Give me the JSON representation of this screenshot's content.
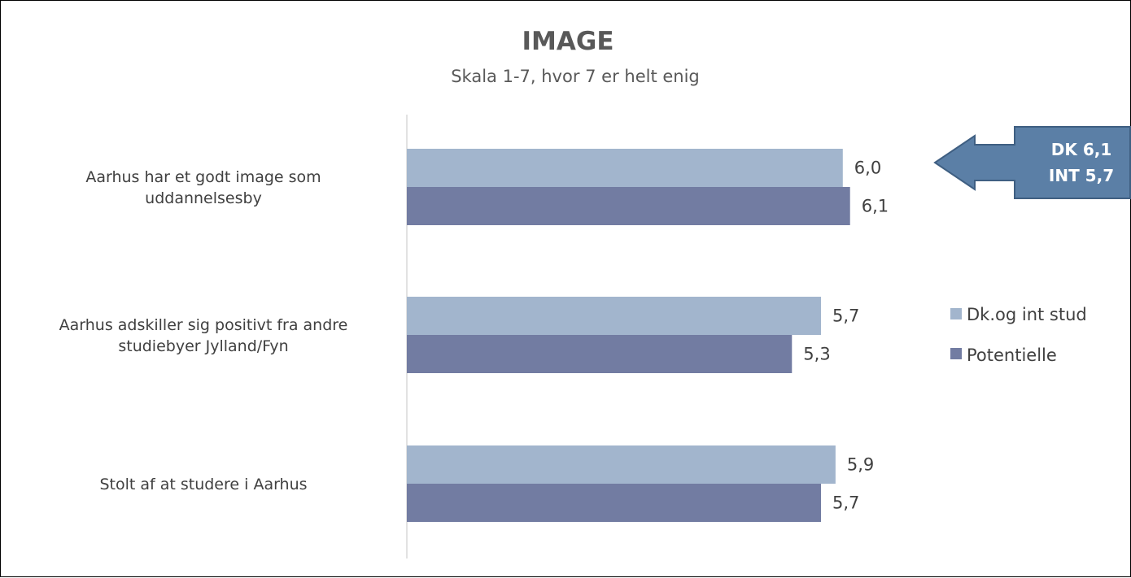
{
  "chart_data": {
    "type": "bar",
    "orientation": "horizontal",
    "title": "IMAGE",
    "subtitle": "Skala 1-7, hvor 7 er helt enig",
    "categories": [
      [
        "Aarhus har et godt image som",
        "uddannelsesby"
      ],
      [
        "Aarhus adskiller sig positivt fra andre",
        "studiebyer Jylland/Fyn"
      ],
      [
        "Stolt af at studere i Aarhus"
      ]
    ],
    "series": [
      {
        "name": "Dk.og int stud",
        "color": "#a2b5cd",
        "values": [
          6.0,
          5.7,
          5.9
        ],
        "labels": [
          "6,0",
          "5,7",
          "5,9"
        ]
      },
      {
        "name": "Potentielle",
        "color": "#727ca2",
        "values": [
          6.1,
          5.3,
          5.7
        ],
        "labels": [
          "6,1",
          "5,3",
          "5,7"
        ]
      }
    ],
    "xlim": [
      0,
      7
    ],
    "grid": false,
    "legend_position": "right"
  },
  "callout": {
    "lines": [
      "DK 6,1",
      "INT 5,7"
    ],
    "color": "#5b7fa6"
  }
}
